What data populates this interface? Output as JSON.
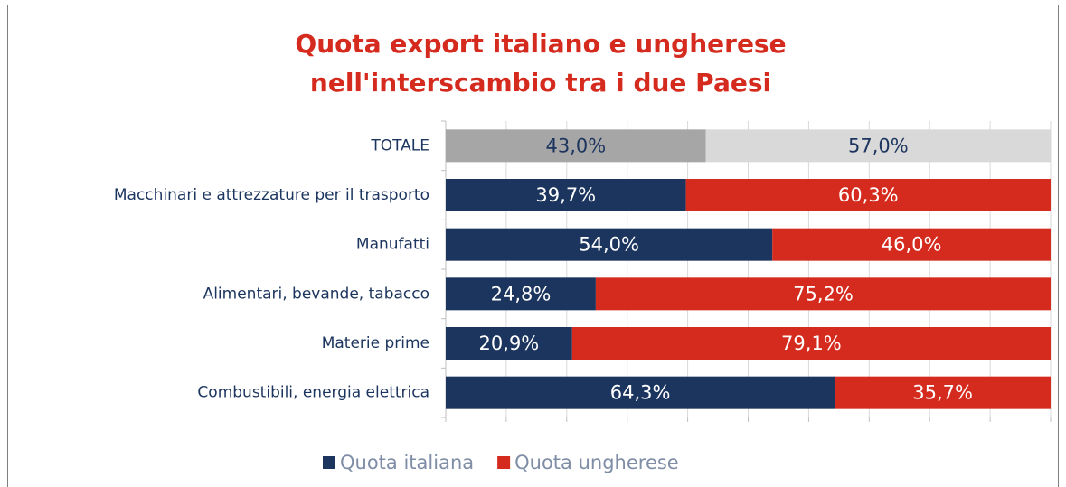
{
  "chart_data": {
    "type": "stacked_bar_horizontal",
    "title": [
      "Quota export italiano e ungherese",
      "nell'interscambio tra i due Paesi"
    ],
    "categories": [
      "TOTALE",
      "Macchinari e attrezzature per il trasporto",
      "Manufatti",
      "Alimentari, bevande, tabacco",
      "Materie prime",
      "Combustibili, energia elettrica"
    ],
    "series": [
      {
        "name": "Quota italiana",
        "color": "#1c355e",
        "point_colors": [
          "#a6a6a6",
          "#1c355e",
          "#1c355e",
          "#1c355e",
          "#1c355e",
          "#1c355e"
        ],
        "values": [
          43.0,
          39.7,
          54.0,
          24.8,
          20.9,
          64.3
        ],
        "value_labels": [
          "43,0%",
          "39,7%",
          "54,0%",
          "24,8%",
          "20,9%",
          "64,3%"
        ]
      },
      {
        "name": "Quota ungherese",
        "color": "#d52b1e",
        "point_colors": [
          "#d9d9d9",
          "#d52b1e",
          "#d52b1e",
          "#d52b1e",
          "#d52b1e",
          "#d52b1e"
        ],
        "values": [
          57.0,
          60.3,
          46.0,
          75.2,
          79.1,
          35.7
        ],
        "value_labels": [
          "57,0%",
          "60,3%",
          "46,0%",
          "75,2%",
          "79,1%",
          "35,7%"
        ]
      }
    ],
    "xlim": [
      0,
      100
    ],
    "xticks": [
      0,
      10,
      20,
      30,
      40,
      50,
      60,
      70,
      80,
      90,
      100
    ],
    "grid": true,
    "legend": "bottom"
  }
}
